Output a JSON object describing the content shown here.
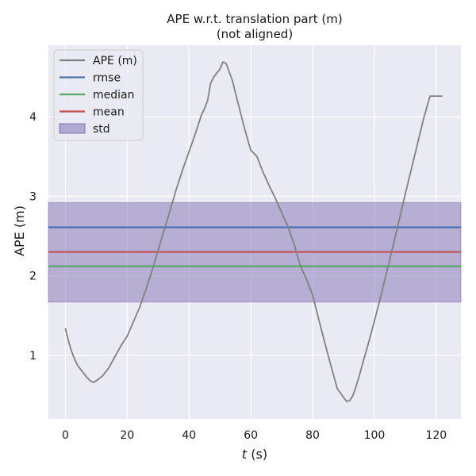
{
  "chart_data": {
    "type": "line",
    "title": "APE w.r.t. translation part (m)",
    "subtitle": "(not aligned)",
    "xlabel_var": "t",
    "xlabel_unit": " (s)",
    "ylabel": "APE (m)",
    "xlim": [
      -5.5,
      128
    ],
    "ylim": [
      0.2,
      4.9
    ],
    "xticks": [
      0,
      20,
      40,
      60,
      80,
      100,
      120
    ],
    "yticks": [
      1,
      2,
      3,
      4
    ],
    "grid": true,
    "background": "#eaeaf2",
    "legend_position": "top-left",
    "series": [
      {
        "name": "APE (m)",
        "color": "#808080",
        "x": [
          0,
          1,
          2,
          3,
          4,
          5,
          6,
          7,
          8,
          9,
          10,
          12,
          14,
          16,
          18,
          20,
          22,
          24,
          26,
          28,
          30,
          32,
          34,
          36,
          38,
          40,
          42,
          44,
          45,
          46,
          47,
          48,
          49,
          50,
          51,
          52,
          54,
          56,
          58,
          60,
          62,
          63,
          64,
          66,
          68,
          70,
          72,
          74,
          76,
          78,
          80,
          82,
          84,
          86,
          88,
          90,
          91,
          92,
          93,
          94,
          95,
          96,
          98,
          100,
          102,
          104,
          106,
          108,
          110,
          112,
          114,
          116,
          118,
          120,
          122
        ],
        "y": [
          1.34,
          1.18,
          1.05,
          0.95,
          0.87,
          0.82,
          0.77,
          0.72,
          0.68,
          0.66,
          0.68,
          0.74,
          0.84,
          0.98,
          1.12,
          1.24,
          1.42,
          1.6,
          1.82,
          2.06,
          2.32,
          2.58,
          2.84,
          3.1,
          3.34,
          3.56,
          3.78,
          4.02,
          4.1,
          4.2,
          4.42,
          4.5,
          4.55,
          4.6,
          4.69,
          4.67,
          4.46,
          4.15,
          3.85,
          3.58,
          3.5,
          3.4,
          3.3,
          3.13,
          2.97,
          2.79,
          2.62,
          2.4,
          2.13,
          1.96,
          1.76,
          1.45,
          1.15,
          0.86,
          0.58,
          0.47,
          0.42,
          0.43,
          0.49,
          0.6,
          0.73,
          0.87,
          1.14,
          1.43,
          1.73,
          2.05,
          2.37,
          2.7,
          3.03,
          3.35,
          3.67,
          3.99,
          4.26,
          4.26,
          4.26
        ]
      },
      {
        "name": "rmse",
        "color": "#4c72b0",
        "value": 2.61
      },
      {
        "name": "median",
        "color": "#55a868",
        "value": 2.12
      },
      {
        "name": "mean",
        "color": "#c44e52",
        "value": 2.3
      },
      {
        "name": "std",
        "color": "#8172b3",
        "band": [
          1.67,
          2.92
        ]
      }
    ]
  }
}
